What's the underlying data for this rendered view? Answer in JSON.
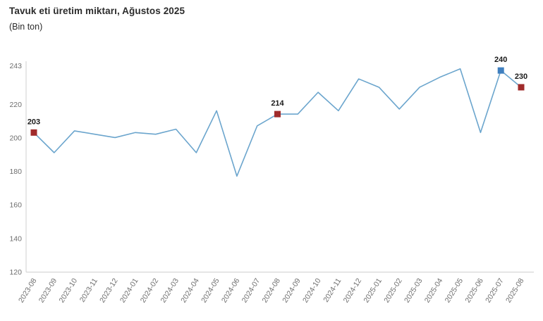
{
  "chart_data": {
    "type": "line",
    "title": "Tavuk eti üretim miktarı, Ağustos 2025",
    "subtitle": "(Bin ton)",
    "categories": [
      "2023-08",
      "2023-09",
      "2023-10",
      "2023-11",
      "2023-12",
      "2024-01",
      "2024-02",
      "2024-03",
      "2024-04",
      "2024-05",
      "2024-06",
      "2024-07",
      "2024-08",
      "2024-09",
      "2024-10",
      "2024-11",
      "2024-12",
      "2025-01",
      "2025-02",
      "2025-03",
      "2025-04",
      "2025-05",
      "2025-06",
      "2025-07",
      "2025-08"
    ],
    "values": [
      203,
      191,
      204,
      202,
      200,
      203,
      202,
      205,
      191,
      216,
      177,
      207,
      214,
      214,
      227,
      216,
      235,
      230,
      217,
      230,
      236,
      241,
      203,
      240,
      230
    ],
    "ylim": [
      120,
      243
    ],
    "yticks": [
      120,
      140,
      160,
      180,
      200,
      220,
      243
    ],
    "grid": false,
    "legend": false,
    "line_color": "#6BA5CD",
    "axis_color": "#cfcfcf",
    "annotations": [
      {
        "index": 0,
        "label": "203",
        "marker_color": "#A02B2B"
      },
      {
        "index": 12,
        "label": "214",
        "marker_color": "#A02B2B"
      },
      {
        "index": 23,
        "label": "240",
        "marker_color": "#3F7FBF"
      },
      {
        "index": 24,
        "label": "230",
        "marker_color": "#A02B2B"
      }
    ]
  }
}
